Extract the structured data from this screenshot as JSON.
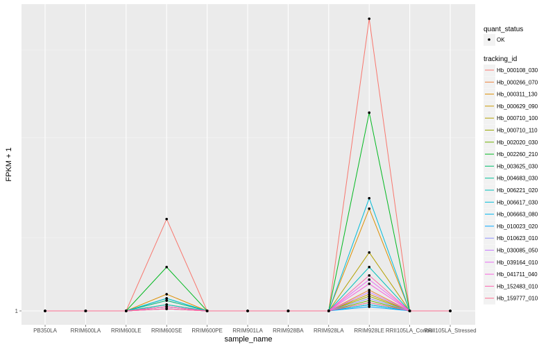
{
  "chart_data": {
    "type": "line",
    "xlabel": "sample_name",
    "ylabel": "FPKM + 1",
    "categories": [
      "PB350LA",
      "RRIM600LA",
      "RRIM600LE",
      "RRIM600SE",
      "RRIM600PE",
      "RRIM901LA",
      "RRIM928BA",
      "RRIM928LA",
      "RRIM928LE",
      "RRII105LA_Control",
      "RRII105LA_Stressed"
    ],
    "y_ticks": [
      1
    ],
    "y_tick_labels": [
      "1"
    ],
    "ylim": [
      0.7,
      15.5
    ],
    "grid": true,
    "legend_position": "right",
    "shape_legend": {
      "title": "quant_status",
      "entries": [
        "OK"
      ]
    },
    "color_legend_title": "tracking_id",
    "series": [
      {
        "name": "Hb_000108_030",
        "color": "#F8766D",
        "values": [
          1,
          1,
          1,
          5.4,
          1,
          1,
          1,
          1,
          15,
          1,
          1
        ]
      },
      {
        "name": "Hb_000266_070",
        "color": "#EC823C",
        "values": [
          1,
          1,
          1,
          1.3,
          1,
          1,
          1,
          1,
          2.0,
          1,
          1
        ]
      },
      {
        "name": "Hb_000311_130",
        "color": "#DC8E00",
        "values": [
          1,
          1,
          1,
          1.8,
          1,
          1,
          1,
          1,
          5.9,
          1,
          1
        ]
      },
      {
        "name": "Hb_000629_090",
        "color": "#C99800",
        "values": [
          1,
          1,
          1,
          1.5,
          1,
          1,
          1,
          1,
          1.8,
          1,
          1
        ]
      },
      {
        "name": "Hb_000710_100",
        "color": "#B3A000",
        "values": [
          1,
          1,
          1,
          1.2,
          1,
          1,
          1,
          1,
          3.8,
          1,
          1
        ]
      },
      {
        "name": "Hb_000710_110",
        "color": "#97A800",
        "values": [
          1,
          1,
          1,
          1.1,
          1,
          1,
          1,
          1,
          1.7,
          1,
          1
        ]
      },
      {
        "name": "Hb_002020_030",
        "color": "#6FB000",
        "values": [
          1,
          1,
          1,
          1.2,
          1,
          1,
          1,
          1,
          1.5,
          1,
          1
        ]
      },
      {
        "name": "Hb_002260_210",
        "color": "#00B81F",
        "values": [
          1,
          1,
          1,
          3.1,
          1,
          1,
          1,
          1,
          10.5,
          1,
          1
        ]
      },
      {
        "name": "Hb_003625_030",
        "color": "#00BE6B",
        "values": [
          1,
          1,
          1,
          1.6,
          1,
          1,
          1,
          1,
          1.3,
          1,
          1
        ]
      },
      {
        "name": "Hb_004683_030",
        "color": "#00C097",
        "values": [
          1,
          1,
          1,
          1.5,
          1,
          1,
          1,
          1,
          1.4,
          1,
          1
        ]
      },
      {
        "name": "Hb_006221_020",
        "color": "#00BFBB",
        "values": [
          1,
          1,
          1,
          1.3,
          1,
          1,
          1,
          1,
          3.1,
          1,
          1
        ]
      },
      {
        "name": "Hb_006617_030",
        "color": "#00BCD8",
        "values": [
          1,
          1,
          1,
          1.6,
          1,
          1,
          1,
          1,
          6.4,
          1,
          1
        ]
      },
      {
        "name": "Hb_006663_080",
        "color": "#00B5EE",
        "values": [
          1,
          1,
          1,
          1.1,
          1,
          1,
          1,
          1,
          1.3,
          1,
          1
        ]
      },
      {
        "name": "Hb_010023_020",
        "color": "#00A8FF",
        "values": [
          1,
          1,
          1,
          1.2,
          1,
          1,
          1,
          1,
          1.2,
          1,
          1
        ]
      },
      {
        "name": "Hb_010623_010",
        "color": "#8F91FF",
        "values": [
          1,
          1,
          1,
          1.1,
          1,
          1,
          1,
          1,
          1.6,
          1,
          1
        ]
      },
      {
        "name": "Hb_030085_050",
        "color": "#C77CFF",
        "values": [
          1,
          1,
          1,
          1.1,
          1,
          1,
          1,
          1,
          1.9,
          1,
          1
        ]
      },
      {
        "name": "Hb_039164_010",
        "color": "#E76BF3",
        "values": [
          1,
          1,
          1,
          1.2,
          1,
          1,
          1,
          1,
          2.5,
          1,
          1
        ]
      },
      {
        "name": "Hb_041711_040",
        "color": "#F962DD",
        "values": [
          1,
          1,
          1,
          1.1,
          1,
          1,
          1,
          1,
          2.3,
          1,
          1
        ]
      },
      {
        "name": "Hb_152483_010",
        "color": "#FF64B0",
        "values": [
          1,
          1,
          1,
          1.2,
          1,
          1,
          1,
          1,
          2.7,
          1,
          1
        ]
      },
      {
        "name": "Hb_159777_010",
        "color": "#FF6C91",
        "values": [
          1,
          1,
          1,
          1.1,
          1,
          1,
          1,
          1,
          1.4,
          1,
          1
        ]
      }
    ]
  }
}
